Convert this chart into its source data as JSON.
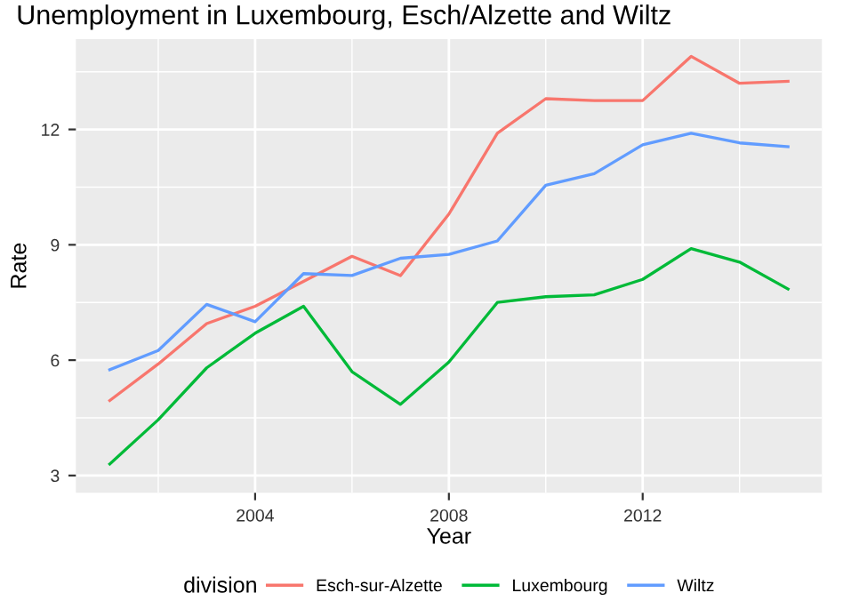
{
  "chart_data": {
    "type": "line",
    "title": "Unemployment in Luxembourg, Esch/Alzette and Wiltz",
    "xlabel": "Year",
    "ylabel": "Rate",
    "legend_title": "division",
    "x": [
      2001,
      2002,
      2003,
      2004,
      2005,
      2006,
      2007,
      2008,
      2009,
      2010,
      2011,
      2012,
      2013,
      2014,
      2015
    ],
    "series": [
      {
        "name": "Esch-sur-Alzette",
        "color": "#f8766d",
        "values": [
          4.95,
          5.9,
          6.95,
          7.4,
          8.05,
          8.7,
          8.2,
          9.8,
          11.9,
          12.8,
          12.75,
          12.75,
          13.9,
          13.2,
          13.25
        ]
      },
      {
        "name": "Luxembourg",
        "color": "#00ba38",
        "values": [
          3.3,
          4.45,
          5.8,
          6.7,
          7.4,
          5.7,
          4.85,
          5.95,
          7.5,
          7.65,
          7.7,
          8.1,
          8.9,
          8.55,
          7.85
        ]
      },
      {
        "name": "Wiltz",
        "color": "#619cff",
        "values": [
          5.75,
          6.25,
          7.45,
          7.0,
          8.25,
          8.2,
          8.65,
          8.75,
          9.1,
          10.55,
          10.85,
          11.6,
          11.9,
          11.65,
          11.55
        ]
      }
    ],
    "xlim": [
      2000.3,
      2015.7
    ],
    "ylim": [
      2.55,
      14.35
    ],
    "xticks": [
      2004,
      2008,
      2012
    ],
    "yticks": [
      3,
      6,
      9,
      12
    ],
    "grid": true,
    "legend": "bottom",
    "marker": "none",
    "line_style": "solid"
  }
}
